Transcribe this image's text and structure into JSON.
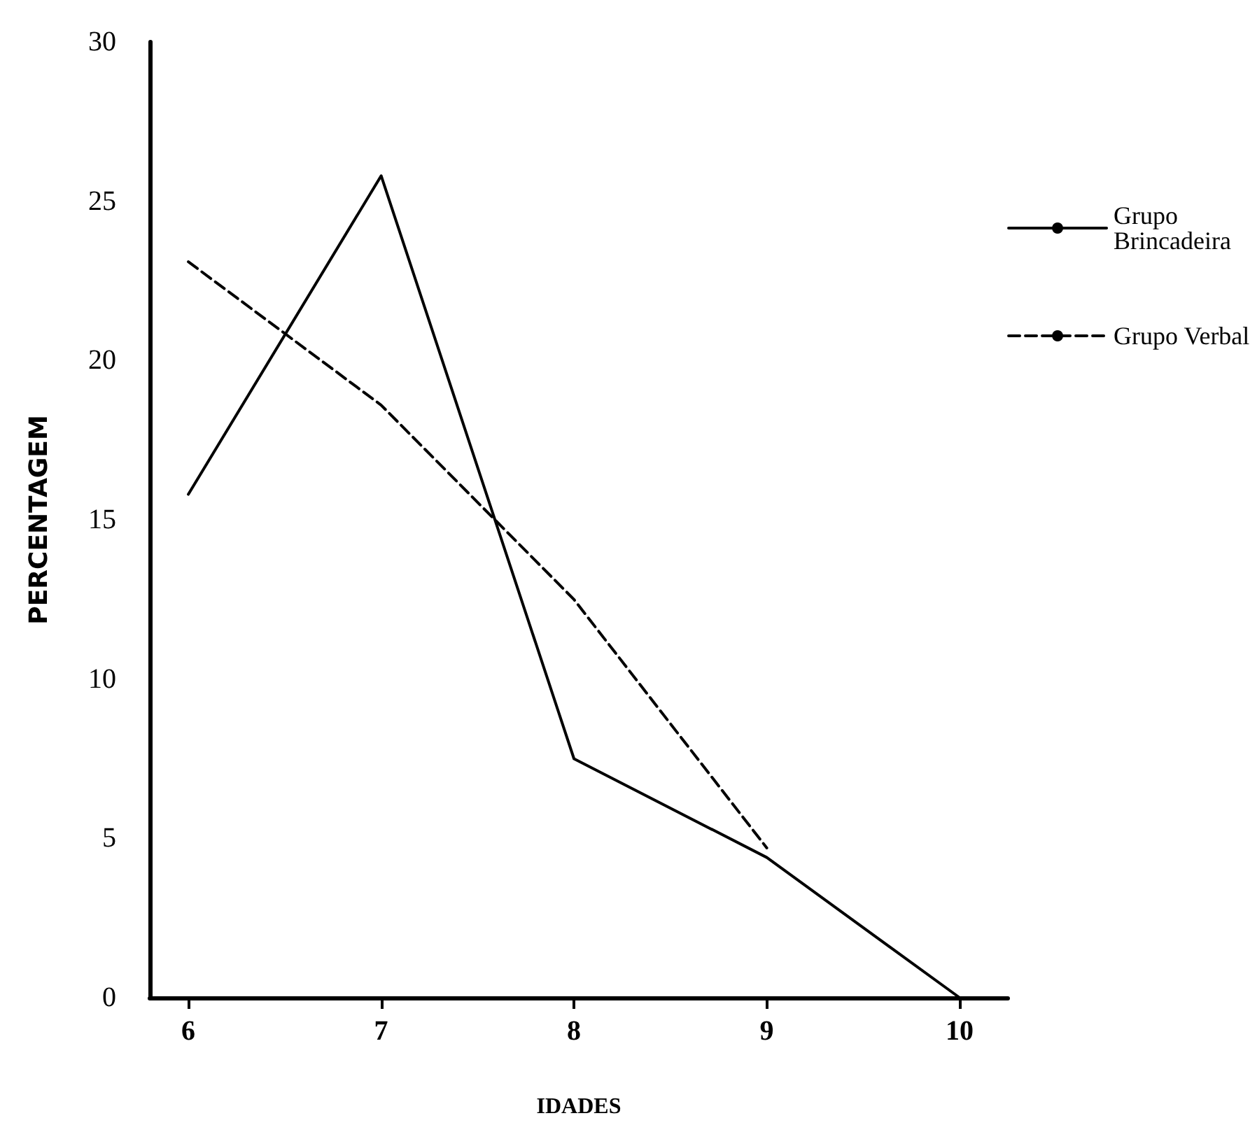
{
  "chart_data": {
    "type": "line",
    "xlabel": "IDADES",
    "ylabel": "PERCENTAGEM",
    "series": [
      {
        "name": "Grupo Brincadeira",
        "color": "#000000",
        "line_style": "solid",
        "x": [
          6,
          7,
          8,
          9,
          10
        ],
        "values": [
          15.8,
          25.8,
          7.5,
          4.4,
          0
        ]
      },
      {
        "name": "Grupo Verbal",
        "color": "#000000",
        "line_style": "dashed",
        "x": [
          6,
          7,
          8,
          9
        ],
        "values": [
          23.1,
          18.6,
          12.5,
          4.7
        ]
      }
    ],
    "xlim": [
      5.8,
      10.25
    ],
    "xticks": [
      6,
      7,
      8,
      9,
      10
    ],
    "ylim": [
      0,
      30
    ],
    "yticks": [
      0,
      5,
      10,
      15,
      20,
      25,
      30
    ],
    "grid": false,
    "legend": "top right",
    "marker": "none"
  }
}
